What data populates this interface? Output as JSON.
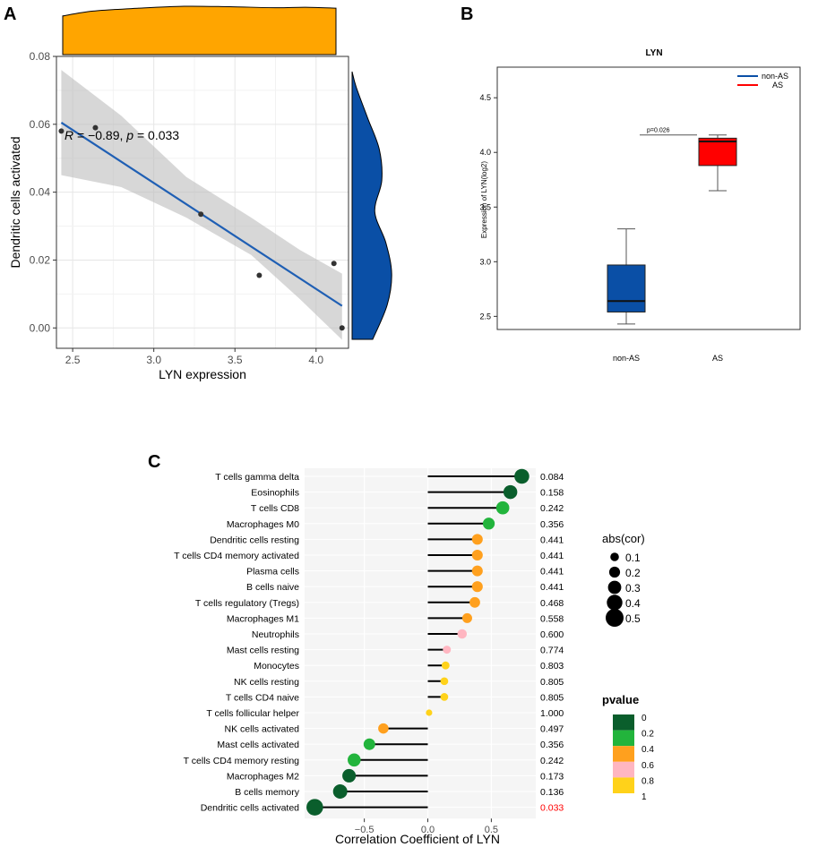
{
  "panels": {
    "A": "A",
    "B": "B",
    "C": "C"
  },
  "chart_data": [
    {
      "id": "A",
      "type": "scatter",
      "title": "",
      "xlabel": "LYN expression",
      "ylabel": "Dendritic cells activated",
      "xlim": [
        2.4,
        4.2
      ],
      "ylim": [
        -0.006,
        0.08
      ],
      "xticks": [
        2.5,
        3.0,
        3.5,
        4.0
      ],
      "xtick_labels": [
        "2.5",
        "3.0",
        "3.5",
        "4.0"
      ],
      "yticks": [
        0.0,
        0.02,
        0.04,
        0.06,
        0.08
      ],
      "ytick_labels": [
        "0.00",
        "0.02",
        "0.04",
        "0.06",
        "0.08"
      ],
      "points": [
        {
          "x": 2.43,
          "y": 0.058
        },
        {
          "x": 2.64,
          "y": 0.059
        },
        {
          "x": 3.29,
          "y": 0.0335
        },
        {
          "x": 3.65,
          "y": 0.0155
        },
        {
          "x": 4.11,
          "y": 0.019
        },
        {
          "x": 4.16,
          "y": 0.0
        }
      ],
      "fit_line": {
        "x": [
          2.43,
          4.16
        ],
        "y": [
          0.0605,
          0.0065
        ]
      },
      "confidence_band": {
        "x": [
          2.43,
          2.8,
          3.2,
          3.6,
          3.9,
          4.16
        ],
        "upper": [
          0.076,
          0.0625,
          0.0445,
          0.0325,
          0.023,
          0.016
        ],
        "lower": [
          0.045,
          0.0415,
          0.0325,
          0.0215,
          0.0085,
          -0.0035
        ]
      },
      "annotation": {
        "r_label": "R",
        "r_text": " = −0.89, ",
        "p_label": "p",
        "p_text": " = 0.033",
        "x": 2.44,
        "y": 0.0575
      },
      "top_density": {
        "color": "#FFA500",
        "x": [
          2.4,
          2.6,
          2.9,
          3.2,
          3.5,
          3.8,
          4.0,
          4.2
        ],
        "density": [
          0.8,
          0.9,
          0.96,
          1.0,
          0.99,
          0.97,
          0.98,
          0.96
        ]
      },
      "right_density": {
        "color": "#0a4fa6",
        "y": [
          -0.006,
          0.005,
          0.015,
          0.025,
          0.035,
          0.045,
          0.055,
          0.065,
          0.075,
          0.08
        ],
        "density": [
          0.5,
          0.85,
          0.96,
          0.82,
          0.55,
          0.72,
          0.66,
          0.38,
          0.1,
          0.0
        ]
      }
    },
    {
      "id": "B",
      "type": "box",
      "title": "LYN",
      "xlabel": "",
      "ylabel": "Expression of LYN(log2)",
      "ylim": [
        2.38,
        4.78
      ],
      "yticks": [
        2.5,
        3.0,
        3.5,
        4.0,
        4.5
      ],
      "ytick_labels": [
        "2.5",
        "3.0",
        "3.5",
        "4.0",
        "4.5"
      ],
      "categories": [
        "non-AS",
        "AS"
      ],
      "boxes": [
        {
          "name": "non-AS",
          "min": 2.43,
          "q1": 2.54,
          "median": 2.64,
          "q3": 2.97,
          "max": 3.3,
          "color": "#0a4fa6"
        },
        {
          "name": "AS",
          "min": 3.65,
          "q1": 3.88,
          "median": 4.1,
          "q3": 4.13,
          "max": 4.16,
          "color": "#ff0000"
        }
      ],
      "significance": {
        "label": "p=0.026",
        "y": 4.16
      },
      "legend": [
        {
          "name": "non-AS",
          "color": "#0a4fa6"
        },
        {
          "name": "AS",
          "color": "#ff0000"
        }
      ]
    },
    {
      "id": "C",
      "type": "lollipop",
      "title": "",
      "xlabel": "Correlation Coefficient of LYN",
      "xlim": [
        -0.97,
        0.85
      ],
      "xticks": [
        -0.5,
        0.0,
        0.5
      ],
      "xtick_labels": [
        "−0.5",
        "0.0",
        "0.5"
      ],
      "categories": [
        "T cells gamma delta",
        "Eosinophils",
        "T cells CD8",
        "Macrophages M0",
        "Dendritic cells resting",
        "T cells CD4 memory activated",
        "Plasma cells",
        "B cells naive",
        "T cells regulatory (Tregs)",
        "Macrophages M1",
        "Neutrophils",
        "Mast cells resting",
        "Monocytes",
        "NK cells resting",
        "T cells CD4 naive",
        "T cells follicular helper",
        "NK cells activated",
        "Mast cells activated",
        "T cells CD4 memory resting",
        "Macrophages M2",
        "B cells memory",
        "Dendritic cells activated"
      ],
      "values": [
        0.74,
        0.65,
        0.59,
        0.48,
        0.39,
        0.39,
        0.39,
        0.39,
        0.37,
        0.31,
        0.27,
        0.15,
        0.14,
        0.13,
        0.13,
        0.01,
        -0.35,
        -0.46,
        -0.58,
        -0.62,
        -0.69,
        -0.89
      ],
      "pvalues": [
        "0.084",
        "0.158",
        "0.242",
        "0.356",
        "0.441",
        "0.441",
        "0.441",
        "0.441",
        "0.468",
        "0.558",
        "0.600",
        "0.774",
        "0.803",
        "0.805",
        "0.805",
        "1.000",
        "0.497",
        "0.356",
        "0.242",
        "0.173",
        "0.136",
        "0.033"
      ],
      "pvalue_highlight": "#ff0000",
      "size_legend": {
        "title": "abs(cor)",
        "labels": [
          "0.1",
          "0.2",
          "0.3",
          "0.4",
          "0.5"
        ]
      },
      "color_legend": {
        "title": "pvalue",
        "labels": [
          "0",
          "0.2",
          "0.4",
          "0.6",
          "0.8",
          "1"
        ],
        "colors": [
          "#0a5e2c",
          "#22b43c",
          "#ffa01e",
          "#ffb6c1",
          "#ffd21a"
        ]
      }
    }
  ]
}
